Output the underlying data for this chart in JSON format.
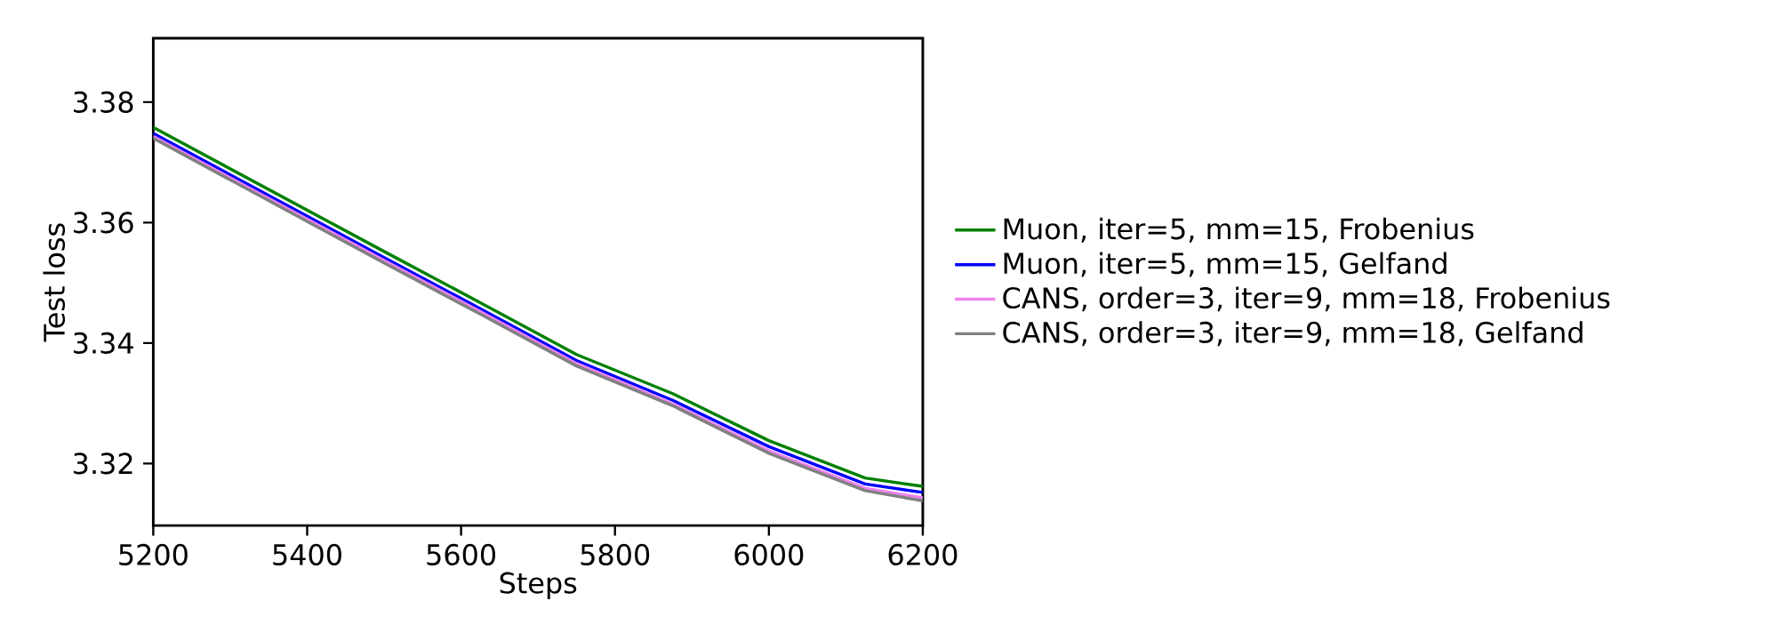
{
  "chart_data": {
    "type": "line",
    "xlabel": "Steps",
    "ylabel": "Test loss",
    "x": [
      5200,
      5500,
      5625,
      5750,
      5875,
      6000,
      6125,
      6200
    ],
    "series": [
      {
        "name": "Muon, iter=5, mm=15, Frobenius",
        "color": "#008000",
        "values": [
          3.3758,
          3.3552,
          3.3467,
          3.3381,
          3.3316,
          3.3238,
          3.3176,
          3.3162
        ]
      },
      {
        "name": "Muon, iter=5, mm=15, Gelfand",
        "color": "#0000ff",
        "values": [
          3.3748,
          3.3542,
          3.3457,
          3.3371,
          3.3305,
          3.3228,
          3.3166,
          3.3152
        ]
      },
      {
        "name": "CANS, order=3, iter=9, mm=18, Frobenius",
        "color": "#ee82ee",
        "values": [
          3.3743,
          3.3537,
          3.3452,
          3.3366,
          3.3299,
          3.3221,
          3.3159,
          3.3143
        ]
      },
      {
        "name": "CANS, order=3, iter=9, mm=18, Gelfand",
        "color": "#808080",
        "values": [
          3.374,
          3.3533,
          3.3448,
          3.3362,
          3.3296,
          3.3217,
          3.3155,
          3.3138
        ]
      }
    ],
    "xlim": [
      5200,
      6200
    ],
    "ylim": [
      3.3097,
      3.3906
    ],
    "xticks": [
      5200,
      5400,
      5600,
      5800,
      6000,
      6200
    ],
    "yticks": [
      3.32,
      3.34,
      3.36,
      3.38
    ],
    "legend": "right",
    "grid": false,
    "marker": "none",
    "line_style": "solid"
  }
}
